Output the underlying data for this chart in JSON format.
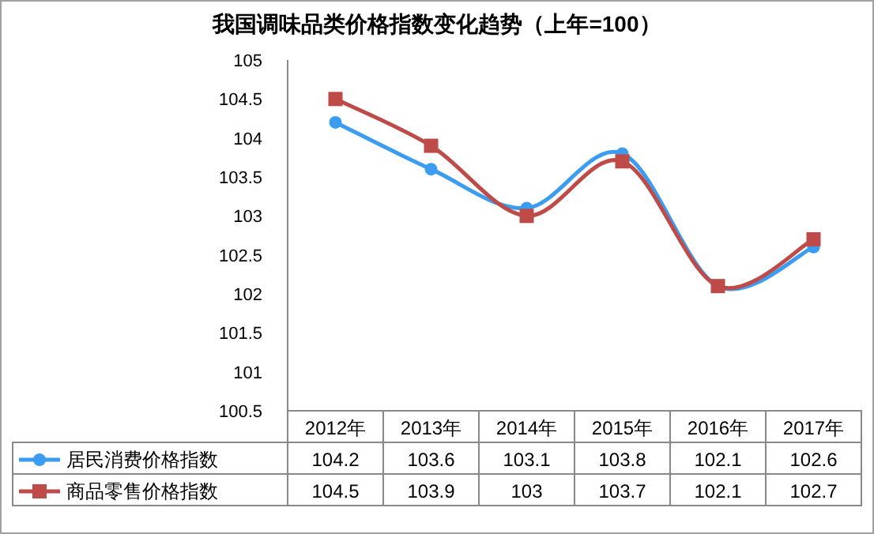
{
  "chart_data": {
    "type": "line",
    "title": "我国调味品类价格指数变化趋势（上年=100）",
    "categories": [
      "2012年",
      "2013年",
      "2014年",
      "2015年",
      "2016年",
      "2017年"
    ],
    "series": [
      {
        "name": "居民消费价格指数",
        "color": "#3c9cf0",
        "marker": "circle",
        "values": [
          104.2,
          103.6,
          103.1,
          103.8,
          102.1,
          102.6
        ]
      },
      {
        "name": "商品零售价格指数",
        "color": "#be4b48",
        "marker": "square",
        "values": [
          104.5,
          103.9,
          103,
          103.7,
          102.1,
          102.7
        ]
      }
    ],
    "ylim": [
      100.5,
      105
    ],
    "yticks": [
      100.5,
      101,
      101.5,
      102,
      102.5,
      103,
      103.5,
      104,
      104.5,
      105
    ],
    "data_labels": true,
    "grid": false,
    "legend": "bottom"
  }
}
